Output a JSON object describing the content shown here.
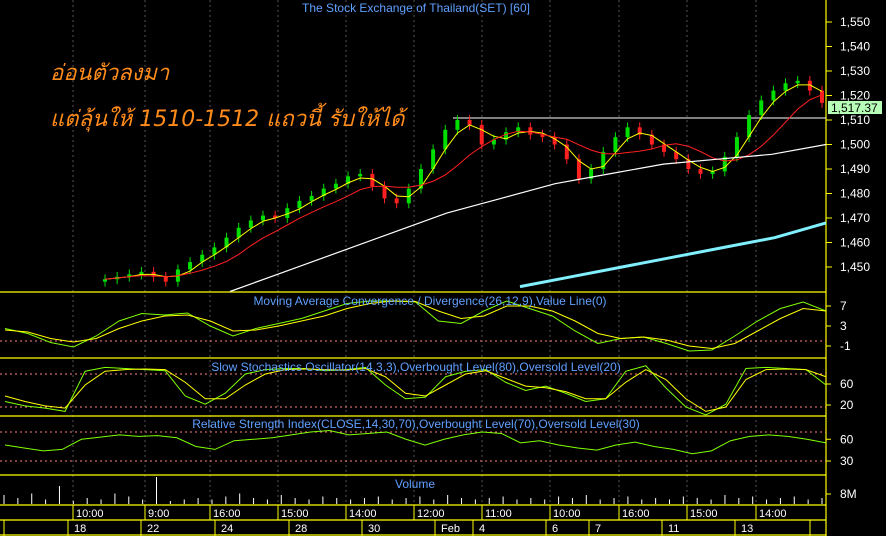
{
  "chart_data": {
    "type": "candlestick",
    "title": "The Stock Exchange of Thailand(SET) [60]",
    "annotation_lines": [
      "อ่อนตัวลงมา",
      "แต่ลุ้นให้ 1510-1512 แถวนี้ รับให้ได้"
    ],
    "last_price_label": "1,517.37",
    "price_axis": {
      "ylim": [
        1440,
        1560
      ],
      "ticks": [
        "1,450",
        "1,460",
        "1,470",
        "1,480",
        "1,490",
        "1,500",
        "1,510",
        "1,520",
        "1,530",
        "1,540",
        "1,550"
      ],
      "tick_values": [
        1450,
        1460,
        1470,
        1480,
        1490,
        1500,
        1510,
        1520,
        1530,
        1540,
        1550
      ]
    },
    "resistance_line": 1512,
    "closes": [
      1445,
      1446,
      1447,
      1448,
      1446,
      1444,
      1449,
      1452,
      1455,
      1458,
      1462,
      1466,
      1469,
      1471,
      1470,
      1474,
      1477,
      1479,
      1482,
      1484,
      1487,
      1488,
      1483,
      1478,
      1476,
      1482,
      1490,
      1498,
      1506,
      1510,
      1508,
      1500,
      1502,
      1505,
      1507,
      1504,
      1503,
      1500,
      1494,
      1486,
      1490,
      1497,
      1503,
      1507,
      1504,
      1500,
      1497,
      1494,
      1490,
      1488,
      1489,
      1495,
      1503,
      1512,
      1518,
      1522,
      1525,
      1526,
      1522,
      1517
    ],
    "long_ma_white": [
      1440,
      1448,
      1456,
      1464,
      1472,
      1478,
      1484,
      1488,
      1492,
      1494,
      1496,
      1500
    ],
    "long_ma_cyan": [
      1442,
      1446,
      1450,
      1454,
      1458,
      1462,
      1468
    ],
    "macd": {
      "label": "Moving Average Convergence / Divergence(26,12,9),Value Line(0)",
      "ticks": [
        "7",
        "3",
        "-1"
      ],
      "tick_values": [
        7,
        3,
        -1
      ],
      "value_line": 0,
      "macd": [
        2.5,
        1.5,
        -0.3,
        -1.2,
        1,
        4,
        5.5,
        5.2,
        5.6,
        3,
        1,
        2.5,
        3.5,
        4.5,
        6,
        7.5,
        8,
        8,
        7.8,
        4,
        3.5,
        6,
        8,
        6.5,
        5,
        2,
        -0.5,
        0.5,
        0.8,
        -0.5,
        -2,
        -1.8,
        1,
        4,
        6.5,
        7.8,
        6
      ],
      "signal": [
        2.2,
        1.8,
        0.5,
        -0.2,
        0.5,
        2.5,
        4,
        5,
        5.2,
        4,
        2,
        2.2,
        3,
        4,
        5,
        6.5,
        7.5,
        8,
        7.9,
        6,
        4.5,
        5,
        7,
        7,
        6,
        4,
        1.5,
        0.5,
        0.8,
        0.2,
        -1,
        -1.5,
        -0.5,
        2,
        4.5,
        6.5,
        6
      ]
    },
    "stochastic": {
      "label": "Slow Stochastics Oscillator(14,3,3),Overbought Level(80),Oversold Level(20)",
      "ticks": [
        "60",
        "20"
      ],
      "tick_values": [
        60,
        20
      ],
      "levels": [
        80,
        20
      ],
      "k": [
        30,
        22,
        18,
        12,
        85,
        92,
        90,
        88,
        86,
        40,
        25,
        45,
        80,
        88,
        90,
        90,
        86,
        88,
        92,
        60,
        35,
        38,
        75,
        85,
        88,
        65,
        50,
        58,
        45,
        30,
        35,
        85,
        95,
        55,
        20,
        5,
        25,
        90,
        92,
        90,
        88,
        60
      ],
      "d": [
        40,
        30,
        22,
        18,
        60,
        85,
        88,
        89,
        88,
        65,
        35,
        35,
        60,
        80,
        88,
        89,
        88,
        87,
        90,
        75,
        45,
        40,
        60,
        80,
        86,
        72,
        58,
        55,
        48,
        35,
        35,
        65,
        88,
        70,
        35,
        12,
        20,
        70,
        88,
        89,
        88,
        75
      ]
    },
    "rsi": {
      "label": "Relative Strength Index(CLOSE,14,30,70),Overbought Level(70),Oversold Level(30)",
      "ticks": [
        "60",
        "30"
      ],
      "tick_values": [
        60,
        30
      ],
      "levels": [
        70,
        30
      ],
      "values": [
        52,
        48,
        44,
        46,
        60,
        63,
        66,
        64,
        65,
        62,
        50,
        46,
        58,
        60,
        62,
        66,
        70,
        72,
        66,
        68,
        70,
        60,
        52,
        60,
        66,
        70,
        68,
        55,
        58,
        52,
        48,
        45,
        52,
        56,
        50,
        46,
        40,
        44,
        58,
        64,
        66,
        64,
        60,
        55
      ]
    },
    "volume": {
      "label": "Volume",
      "ticks": [
        "8M"
      ],
      "values": [
        6,
        4,
        7,
        3,
        12,
        2,
        4,
        3,
        7,
        5,
        3,
        18,
        2,
        3,
        4,
        3,
        5,
        7,
        4,
        3,
        6,
        4,
        3,
        5,
        4,
        3,
        4,
        5,
        3,
        4,
        5,
        3,
        6,
        4,
        3,
        4,
        5,
        3,
        4,
        3,
        5,
        4,
        6,
        3,
        4,
        5,
        3,
        4,
        3,
        5,
        4,
        3,
        6,
        4,
        5,
        3,
        4,
        5,
        3,
        4
      ]
    },
    "time_labels": [
      "10:00",
      "9:00",
      "16:00",
      "15:00",
      "14:00",
      "12:00",
      "11:00",
      "10:00",
      "16:00",
      "15:00",
      "14:00"
    ],
    "date_labels": [
      "18",
      "22",
      "24",
      "28",
      "30",
      "Feb",
      "4",
      "6",
      "7",
      "11",
      "13"
    ]
  },
  "colors": {
    "up": "#00e000",
    "down": "#ff2020",
    "ma_fast": "#ffff00",
    "ma_mid": "#ff2020",
    "ma_white": "#ffffff",
    "ma_cyan": "#80f0ff",
    "macd": "#80ff00",
    "signal": "#ffff00",
    "level": "#ff8080",
    "frame": "#ffff00",
    "title": "#5fa0ff",
    "annotation": "#ff8c1a",
    "price_box": "#b8ffb8"
  }
}
